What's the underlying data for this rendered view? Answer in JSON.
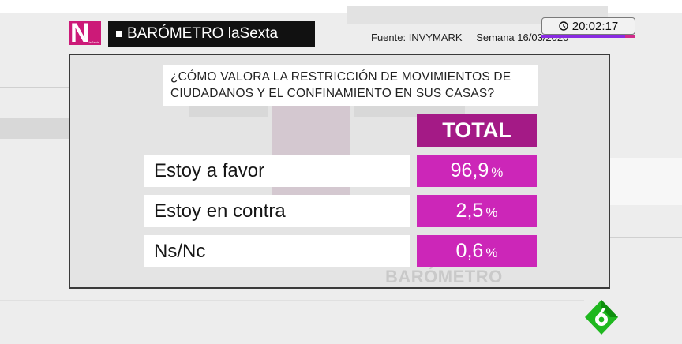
{
  "header": {
    "title": "BARÓMETRO laSexta",
    "source": "Fuente: INVYMARK",
    "week": "Semana 16/03/2020",
    "clock": "20:02:17"
  },
  "logo": {
    "letter": "N",
    "subtext": "laSexta"
  },
  "question": "¿CÓMO VALORA LA RESTRICCIÓN DE MOVIMIENTOS DE CIUDADANOS Y EL CONFINAMIENTO EN SUS CASAS?",
  "table": {
    "column_header": "TOTAL",
    "rows": [
      {
        "label": "Estoy a favor",
        "value": "96,9",
        "unit": "%"
      },
      {
        "label": "Estoy en contra",
        "value": "2,5",
        "unit": "%"
      },
      {
        "label": "Ns/Nc",
        "value": "0,6",
        "unit": "%"
      }
    ]
  },
  "watermark": "BARÓMETRO",
  "colors": {
    "header_purple": "#a41a86",
    "value_magenta": "#cc26b8",
    "logo_pink": "#cc1a78",
    "clock_accent": "#8a2be2"
  }
}
